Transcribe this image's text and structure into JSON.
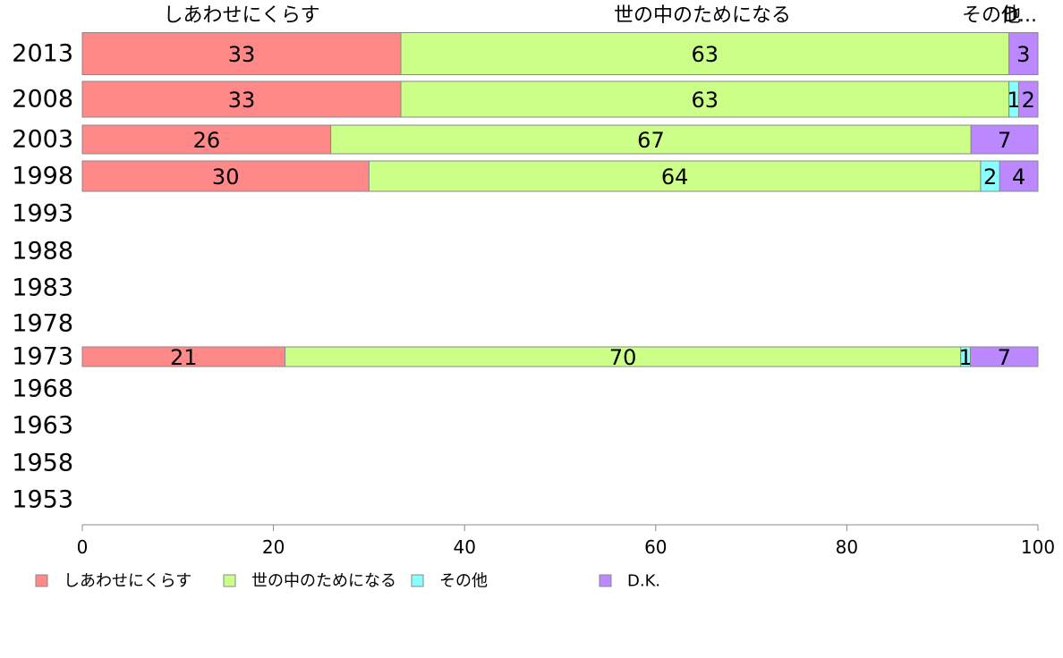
{
  "chart_data": {
    "type": "bar",
    "orientation": "horizontal",
    "stacked": true,
    "categories": [
      "2013",
      "2008",
      "2003",
      "1998",
      "1993",
      "1988",
      "1983",
      "1978",
      "1973",
      "1968",
      "1963",
      "1958",
      "1953"
    ],
    "series": [
      {
        "name": "しあわせにくらす",
        "color": "#ff8888",
        "values": [
          33,
          33,
          26,
          30,
          null,
          null,
          null,
          null,
          21,
          null,
          null,
          null,
          null
        ]
      },
      {
        "name": "世の中のためになる",
        "color": "#ccff88",
        "values": [
          63,
          63,
          67,
          64,
          null,
          null,
          null,
          null,
          70,
          null,
          null,
          null,
          null
        ]
      },
      {
        "name": "その他",
        "color": "#88ffff",
        "values": [
          0,
          1,
          0,
          2,
          null,
          null,
          null,
          null,
          1,
          null,
          null,
          null,
          null
        ]
      },
      {
        "name": "D.K.",
        "color": "#bb88ff",
        "values": [
          3,
          2,
          7,
          4,
          null,
          null,
          null,
          null,
          7,
          null,
          null,
          null,
          null
        ]
      }
    ],
    "data_labels": [
      [
        "33",
        "63",
        "",
        "3"
      ],
      [
        "33",
        "63",
        "1",
        "2"
      ],
      [
        "26",
        "67",
        "",
        "7"
      ],
      [
        "30",
        "64",
        "2",
        "4"
      ],
      null,
      null,
      null,
      null,
      [
        "21",
        "70",
        "1",
        "7"
      ],
      null,
      null,
      null,
      null
    ],
    "column_headers": [
      "しあわせにくらす",
      "世の中のためになる",
      "その他",
      "D..."
    ],
    "x_ticks": [
      "0",
      "20",
      "40",
      "60",
      "80",
      "100"
    ],
    "xlim": [
      0,
      100
    ],
    "grid": false,
    "legend_position": "bottom"
  }
}
